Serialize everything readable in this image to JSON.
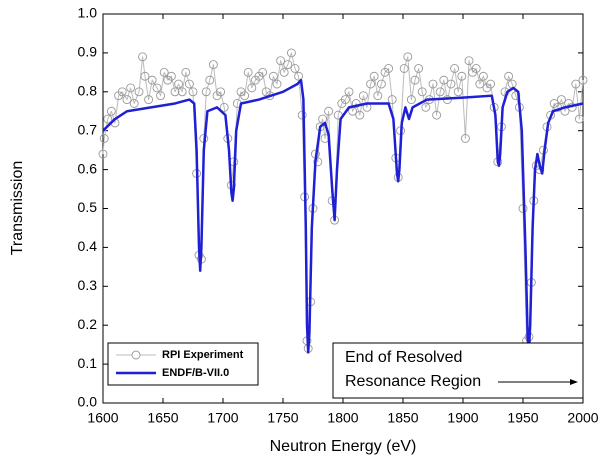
{
  "chart_data": {
    "type": "line",
    "x_label": "Neutron Energy (eV)",
    "y_label": "Transmission",
    "xlim": [
      1600,
      2000
    ],
    "ylim": [
      0,
      1
    ],
    "xticks": [
      1600,
      1650,
      1700,
      1750,
      1800,
      1850,
      1900,
      1950,
      2000
    ],
    "yticks": [
      {
        "value": 0,
        "label": "0.0"
      },
      0.1,
      0.2,
      0.3,
      0.4,
      0.5,
      0.6,
      0.7,
      0.8,
      0.9,
      {
        "value": 1,
        "label": "1.0"
      }
    ],
    "legend": "lower left",
    "annotation": [
      "End of Resolved",
      "Resonance Region"
    ],
    "series": [
      {
        "name": "RPI Experiment",
        "color": "#999999",
        "marker": "circle",
        "x": [
          1600,
          1601,
          1604,
          1607,
          1610,
          1613,
          1616,
          1620,
          1623,
          1626,
          1630,
          1633,
          1635,
          1638,
          1641,
          1645,
          1648,
          1651,
          1654,
          1657,
          1660,
          1663,
          1666,
          1669,
          1672,
          1675,
          1678,
          1680,
          1682,
          1684,
          1686,
          1689,
          1692,
          1695,
          1698,
          1701,
          1704,
          1707,
          1709,
          1712,
          1715,
          1718,
          1721,
          1724,
          1727,
          1730,
          1733,
          1736,
          1739,
          1742,
          1745,
          1748,
          1751,
          1754,
          1757,
          1760,
          1763,
          1766,
          1768,
          1770,
          1771,
          1773,
          1775,
          1777,
          1779,
          1781,
          1783,
          1785,
          1788,
          1791,
          1793,
          1796,
          1799,
          1802,
          1805,
          1808,
          1811,
          1814,
          1817,
          1820,
          1823,
          1826,
          1829,
          1832,
          1835,
          1838,
          1841,
          1844,
          1846,
          1848,
          1851,
          1854,
          1857,
          1860,
          1863,
          1866,
          1869,
          1872,
          1875,
          1878,
          1881,
          1884,
          1887,
          1890,
          1893,
          1896,
          1899,
          1902,
          1905,
          1908,
          1911,
          1914,
          1917,
          1920,
          1923,
          1926,
          1929,
          1932,
          1935,
          1938,
          1941,
          1944,
          1947,
          1950,
          1953,
          1955,
          1957,
          1959,
          1961,
          1964,
          1967,
          1970,
          1973,
          1976,
          1979,
          1982,
          1985,
          1988,
          1991,
          1994,
          1997,
          2000
        ],
        "values": [
          0.64,
          0.68,
          0.73,
          0.75,
          0.72,
          0.79,
          0.8,
          0.78,
          0.81,
          0.77,
          0.8,
          0.89,
          0.84,
          0.78,
          0.83,
          0.81,
          0.79,
          0.85,
          0.83,
          0.84,
          0.8,
          0.82,
          0.8,
          0.85,
          0.82,
          0.8,
          0.59,
          0.38,
          0.37,
          0.68,
          0.8,
          0.83,
          0.87,
          0.79,
          0.8,
          0.76,
          0.68,
          0.56,
          0.62,
          0.77,
          0.8,
          0.79,
          0.85,
          0.81,
          0.83,
          0.84,
          0.85,
          0.8,
          0.79,
          0.84,
          0.82,
          0.88,
          0.85,
          0.87,
          0.9,
          0.86,
          0.84,
          0.74,
          0.53,
          0.16,
          0.14,
          0.26,
          0.5,
          0.64,
          0.62,
          0.71,
          0.73,
          0.68,
          0.75,
          0.52,
          0.47,
          0.74,
          0.77,
          0.78,
          0.8,
          0.75,
          0.77,
          0.74,
          0.79,
          0.76,
          0.82,
          0.84,
          0.79,
          0.82,
          0.85,
          0.86,
          0.78,
          0.63,
          0.58,
          0.7,
          0.86,
          0.89,
          0.78,
          0.83,
          0.86,
          0.8,
          0.76,
          0.78,
          0.82,
          0.74,
          0.8,
          0.83,
          0.78,
          0.82,
          0.86,
          0.8,
          0.84,
          0.68,
          0.88,
          0.85,
          0.86,
          0.82,
          0.84,
          0.81,
          0.82,
          0.76,
          0.62,
          0.71,
          0.8,
          0.84,
          0.82,
          0.79,
          0.76,
          0.5,
          0.16,
          0.17,
          0.31,
          0.52,
          0.61,
          0.6,
          0.65,
          0.71,
          0.74,
          0.77,
          0.76,
          0.78,
          0.75,
          0.77,
          0.76,
          0.82,
          0.73,
          0.83
        ]
      },
      {
        "name": "ENDF/B-VII.0",
        "color": "#1f1fd6",
        "marker": "none",
        "x": [
          1600,
          1610,
          1620,
          1640,
          1660,
          1672,
          1676,
          1678,
          1680,
          1681,
          1682,
          1684,
          1687,
          1695,
          1702,
          1705,
          1707,
          1708,
          1709,
          1711,
          1715,
          1730,
          1750,
          1762,
          1765,
          1767,
          1769,
          1770,
          1771,
          1772,
          1774,
          1777,
          1781,
          1785,
          1788,
          1791,
          1793,
          1795,
          1798,
          1805,
          1820,
          1838,
          1842,
          1845,
          1846,
          1847,
          1849,
          1852,
          1855,
          1858,
          1870,
          1900,
          1924,
          1927,
          1929,
          1930,
          1931,
          1933,
          1937,
          1942,
          1946,
          1949,
          1952,
          1954,
          1955,
          1956,
          1958,
          1960,
          1962,
          1964,
          1966,
          1968,
          1971,
          1975,
          1985,
          2000
        ],
        "values": [
          0.7,
          0.73,
          0.75,
          0.76,
          0.77,
          0.78,
          0.77,
          0.65,
          0.4,
          0.34,
          0.4,
          0.65,
          0.75,
          0.76,
          0.74,
          0.65,
          0.54,
          0.52,
          0.55,
          0.7,
          0.77,
          0.78,
          0.8,
          0.82,
          0.83,
          0.78,
          0.45,
          0.2,
          0.13,
          0.18,
          0.45,
          0.62,
          0.71,
          0.72,
          0.69,
          0.55,
          0.47,
          0.6,
          0.73,
          0.76,
          0.77,
          0.77,
          0.73,
          0.59,
          0.57,
          0.6,
          0.72,
          0.76,
          0.73,
          0.76,
          0.78,
          0.785,
          0.79,
          0.74,
          0.62,
          0.61,
          0.64,
          0.76,
          0.8,
          0.81,
          0.8,
          0.7,
          0.4,
          0.16,
          0.14,
          0.2,
          0.45,
          0.6,
          0.64,
          0.61,
          0.59,
          0.65,
          0.72,
          0.75,
          0.76,
          0.77
        ]
      }
    ]
  }
}
